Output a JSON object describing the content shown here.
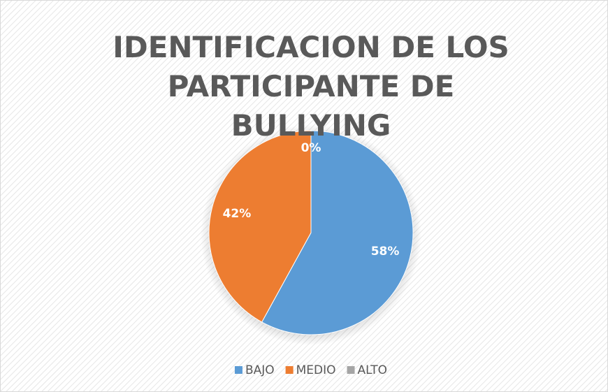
{
  "chart_data": {
    "type": "pie",
    "title": "IDENTIFICACION DE LOS PARTICIPANTE DE BULLYING",
    "categories": [
      "BAJO",
      "MEDIO",
      "ALTO"
    ],
    "values": [
      58,
      42,
      0
    ],
    "value_labels": [
      "58%",
      "42%",
      "0%"
    ],
    "colors": [
      "#5b9bd5",
      "#ed7d31",
      "#a5a5a5"
    ],
    "legend": "bottom"
  }
}
